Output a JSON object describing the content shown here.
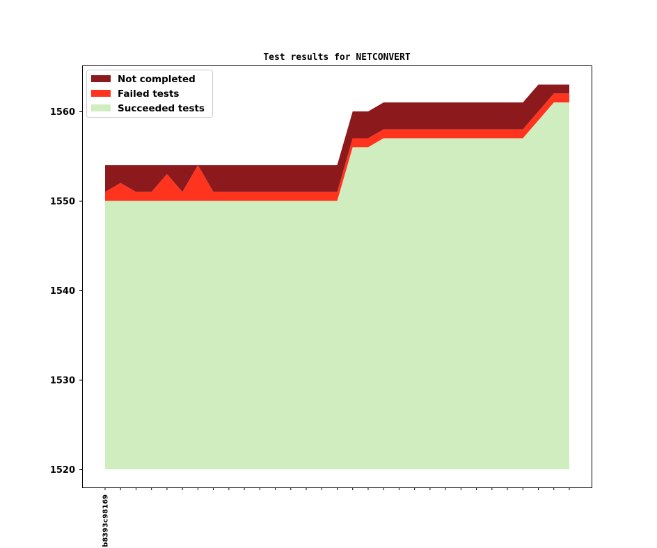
{
  "chart_data": {
    "type": "area",
    "stacked": true,
    "title": "Test results for NETCONVERT",
    "xlabel": "",
    "ylabel": "",
    "ylim": [
      1518,
      1565
    ],
    "yticks": [
      1520,
      1530,
      1540,
      1550,
      1560
    ],
    "x_tick_count": 31,
    "x_tick_labels": [
      {
        "index": 0,
        "label": "b8393c98169"
      }
    ],
    "baseline": 1520,
    "grid": false,
    "legend_position": "upper-left",
    "series": [
      {
        "name": "Succeeded tests",
        "color": "#cfedbf",
        "cumulative_top": [
          1550,
          1550,
          1550,
          1550,
          1550,
          1550,
          1550,
          1550,
          1550,
          1550,
          1550,
          1550,
          1550,
          1550,
          1550,
          1550,
          1556,
          1556,
          1557,
          1557,
          1557,
          1557,
          1557,
          1557,
          1557,
          1557,
          1557,
          1557,
          1559,
          1561,
          1561
        ]
      },
      {
        "name": "Failed tests",
        "color": "#ff341f",
        "cumulative_top": [
          1551,
          1552,
          1551,
          1551,
          1553,
          1551,
          1554,
          1551,
          1551,
          1551,
          1551,
          1551,
          1551,
          1551,
          1551,
          1551,
          1557,
          1557,
          1558,
          1558,
          1558,
          1558,
          1558,
          1558,
          1558,
          1558,
          1558,
          1558,
          1560,
          1562,
          1562
        ]
      },
      {
        "name": "Not completed",
        "color": "#8c1a1c",
        "cumulative_top": [
          1554,
          1554,
          1554,
          1554,
          1554,
          1554,
          1554,
          1554,
          1554,
          1554,
          1554,
          1554,
          1554,
          1554,
          1554,
          1554,
          1560,
          1560,
          1561,
          1561,
          1561,
          1561,
          1561,
          1561,
          1561,
          1561,
          1561,
          1561,
          1563,
          1563,
          1563
        ]
      }
    ],
    "legend_order": [
      "Not completed",
      "Failed tests",
      "Succeeded tests"
    ]
  }
}
